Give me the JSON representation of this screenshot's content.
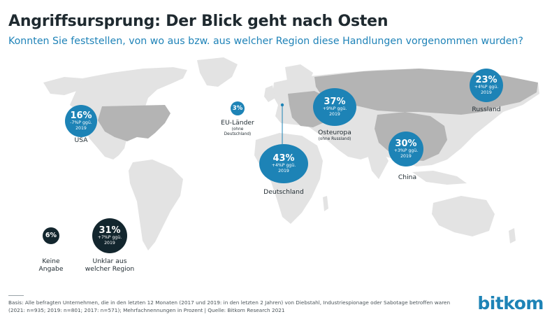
{
  "title": "Angriffsursprung: Der Blick geht nach Osten",
  "subtitle": "Konnten Sie feststellen, von wo aus bzw. aus welcher Region diese Handlungen vorgenommen wurden?",
  "colors": {
    "accent": "#1d83b6",
    "dark": "#13262e",
    "land": "#e3e3e3",
    "highlight": "#b4b4b4"
  },
  "regions": {
    "usa": {
      "pct": "16%",
      "change_1": "-7%P ggü.",
      "change_2": "2019",
      "label": "USA"
    },
    "eu": {
      "pct": "3%",
      "label": "EU-Länder",
      "label_sub_1": "(ohne",
      "label_sub_2": "Deutschland)"
    },
    "de": {
      "pct": "43%",
      "change_1": "+4%P ggü.",
      "change_2": "2019",
      "label": "Deutschland"
    },
    "oe": {
      "pct": "37%",
      "change_1": "+9%P ggü.",
      "change_2": "2019",
      "label": "Osteuropa",
      "label_sub": "(ohne Russland)"
    },
    "cn": {
      "pct": "30%",
      "change_1": "+3%P ggü.",
      "change_2": "2019",
      "label": "China"
    },
    "ru": {
      "pct": "23%",
      "change_1": "+4%P ggü.",
      "change_2": "2019",
      "label": "Russland"
    },
    "na": {
      "pct": "6%",
      "label_1": "Keine",
      "label_2": "Angabe"
    },
    "unk": {
      "pct": "31%",
      "change_1": "+7%P ggü.",
      "change_2": "2019",
      "label_1": "Unklar aus",
      "label_2": "welcher Region"
    }
  },
  "footer": {
    "line1": "Basis: Alle befragten Unternehmen, die in den letzten 12 Monaten (2017 und 2019: in den letzten 2 Jahren) von Diebstahl, Industriespionage oder Sabotage betroffen waren",
    "line2": "(2021: n=935; 2019: n=801; 2017: n=571); Mehrfachnennungen in Prozent | Quelle: Bitkom Research 2021"
  },
  "logo": "bitkom"
}
